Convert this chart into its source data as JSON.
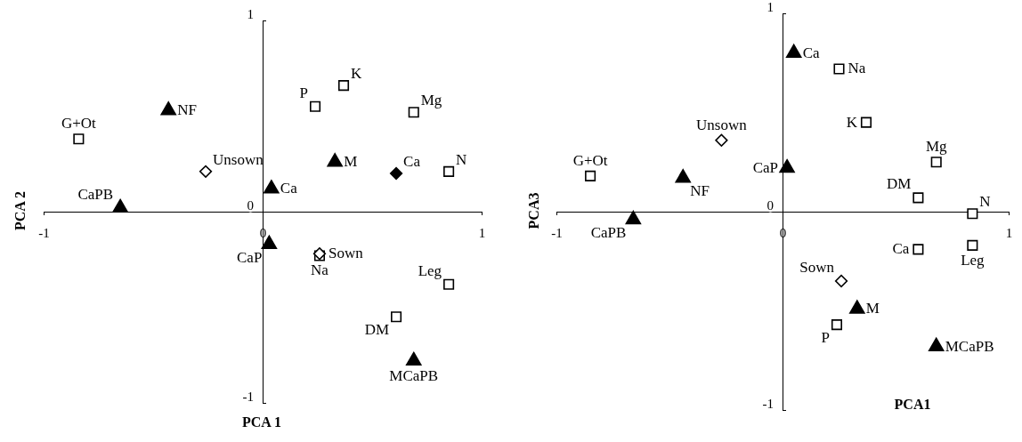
{
  "chart_data": [
    {
      "type": "scatter",
      "xlabel": "PCA 1",
      "ylabel": "PCA 2",
      "xlim": [
        -1,
        1
      ],
      "ylim": [
        -1,
        1
      ],
      "xticks": [
        -1,
        0,
        1
      ],
      "yticks": [
        -1,
        0,
        1
      ],
      "grid": false,
      "series": [
        {
          "marker": "square",
          "color": "#ffffff",
          "x": [
            -0.84,
            0.24,
            0.37,
            0.69,
            0.85,
            0.26,
            0.85,
            0.61
          ],
          "values": [
            0.38,
            0.55,
            0.66,
            0.52,
            0.21,
            -0.23,
            -0.38,
            -0.55
          ],
          "value_labels": [
            "G+Ot",
            "P",
            "K",
            "Mg",
            "N",
            "Na",
            "Leg",
            "DM"
          ]
        },
        {
          "marker": "triangle",
          "color": "#000000",
          "x": [
            -0.43,
            -0.65,
            0.04,
            0.03,
            0.33,
            0.69
          ],
          "values": [
            0.53,
            0.02,
            0.12,
            -0.17,
            0.26,
            -0.78
          ],
          "value_labels": [
            "NF",
            "CaPB",
            "Ca",
            "CaP",
            "M",
            "MCaPB"
          ]
        },
        {
          "marker": "diamond",
          "color": "#ffffff",
          "x": [
            -0.26,
            0.26
          ],
          "values": [
            0.21,
            -0.22
          ],
          "value_labels": [
            "Unsown",
            "Sown"
          ]
        },
        {
          "marker": "diamond",
          "color": "#000000",
          "x": [
            0.61
          ],
          "values": [
            0.2
          ],
          "value_labels": [
            "Ca"
          ]
        }
      ]
    },
    {
      "type": "scatter",
      "xlabel": "PCA1",
      "ylabel": "PCA3",
      "xlim": [
        -1,
        1
      ],
      "ylim": [
        -1,
        1
      ],
      "xticks": [
        -1,
        0,
        1
      ],
      "yticks": [
        -1,
        0,
        1
      ],
      "grid": false,
      "series": [
        {
          "marker": "square",
          "color": "#ffffff",
          "x": [
            -0.85,
            0.25,
            0.37,
            0.68,
            0.6,
            0.84,
            0.6,
            0.84,
            0.24
          ],
          "values": [
            0.18,
            0.72,
            0.45,
            0.25,
            0.07,
            -0.01,
            -0.19,
            -0.17,
            -0.57
          ],
          "value_labels": [
            "G+Ot",
            "Na",
            "K",
            "Mg",
            "DM",
            "N",
            "Ca",
            "Leg",
            "P"
          ]
        },
        {
          "marker": "triangle",
          "color": "#000000",
          "x": [
            0.05,
            -0.44,
            0.02,
            -0.66,
            0.33,
            0.68
          ],
          "values": [
            0.8,
            0.17,
            0.22,
            -0.04,
            -0.49,
            -0.68
          ],
          "value_labels": [
            "Ca",
            "NF",
            "CaP",
            "CaPB",
            "M",
            "MCaPB"
          ]
        },
        {
          "marker": "diamond",
          "color": "#ffffff",
          "x": [
            -0.27,
            0.26
          ],
          "values": [
            0.36,
            -0.35
          ],
          "value_labels": [
            "Unsown",
            "Sown"
          ]
        }
      ]
    }
  ]
}
